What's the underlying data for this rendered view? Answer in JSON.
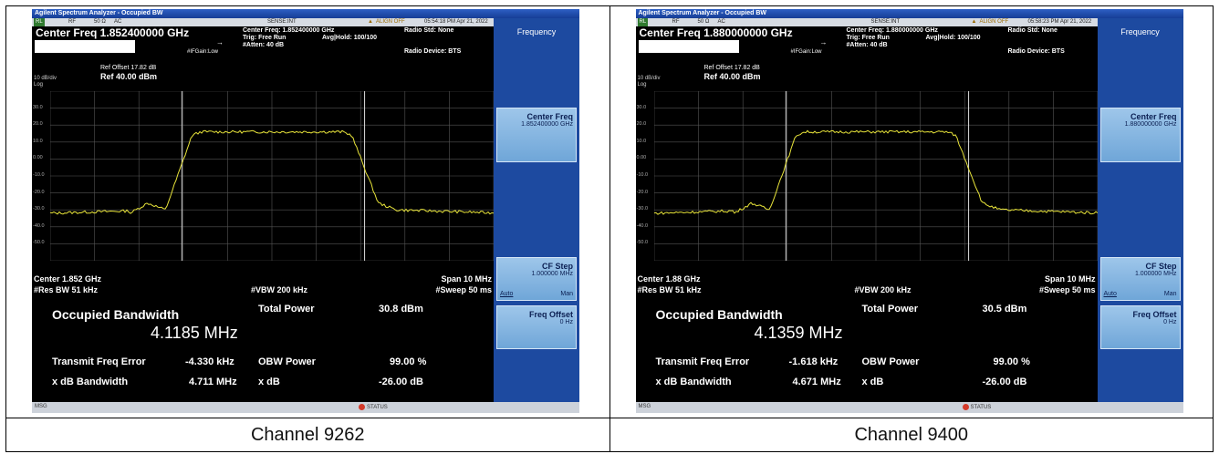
{
  "screens": [
    {
      "app_title": "Agilent Spectrum Analyzer - Occupied BW",
      "status": {
        "rl": "RL",
        "rf": "RF",
        "impedance": "50 Ω",
        "coupling": "AC",
        "sense": "SENSE:INT",
        "align": "ALIGN OFF",
        "timestamp": "05:54:18 PM Apr 21, 2022"
      },
      "center_freq_title": "Center Freq 1.852400000 GHz",
      "center_freq_small": "Center Freq: 1.852400000 GHz",
      "trig": "Trig: Free Run",
      "avg_hold": "Avg|Hold: 100/100",
      "atten": "#Atten: 40 dB",
      "ifgain": "#IFGain:Low",
      "radio_std": "Radio Std: None",
      "radio_device": "Radio Device: BTS",
      "scale": "10 dB/div",
      "log": "Log",
      "ref_offset": "Ref Offset 17.82 dB",
      "ref_level": "Ref 40.00 dBm",
      "y_ticks": [
        "30.0",
        "20.0",
        "10.0",
        "0.00",
        "-10.0",
        "-20.0",
        "-30.0",
        "-40.0",
        "-50.0"
      ],
      "center_label": "Center 1.852 GHz",
      "res_bw": "#Res BW 51 kHz",
      "vbw": "#VBW 200 kHz",
      "span": "Span 10 MHz",
      "sweep": "#Sweep 50 ms",
      "meas": {
        "obw_label": "Occupied Bandwidth",
        "obw_value": "4.1185 MHz",
        "total_power_label": "Total Power",
        "total_power_value": "30.8 dBm",
        "tfe_label": "Transmit Freq Error",
        "tfe_value": "-4.330 kHz",
        "obw_power_label": "OBW Power",
        "obw_power_value": "99.00 %",
        "xdb_bw_label": "x dB Bandwidth",
        "xdb_bw_value": "4.711 MHz",
        "xdb_label": "x dB",
        "xdb_value": "-26.00 dB"
      },
      "softkeys": {
        "menu": "Frequency",
        "center_freq": "Center Freq",
        "center_freq_value": "1.852400000 GHz",
        "cf_step": "CF Step",
        "cf_step_value": "1.000000 MHz",
        "auto": "Auto",
        "man": "Man",
        "freq_offset": "Freq Offset",
        "freq_offset_value": "0 Hz"
      },
      "msg": "MSG",
      "status_label": "STATUS",
      "caption": "Channel 9262"
    },
    {
      "app_title": "Agilent Spectrum Analyzer - Occupied BW",
      "status": {
        "rl": "RL",
        "rf": "RF",
        "impedance": "50 Ω",
        "coupling": "AC",
        "sense": "SENSE:INT",
        "align": "ALIGN OFF",
        "timestamp": "05:58:23 PM Apr 21, 2022"
      },
      "center_freq_title": "Center Freq 1.880000000 GHz",
      "center_freq_small": "Center Freq: 1.880000000 GHz",
      "trig": "Trig: Free Run",
      "avg_hold": "Avg|Hold: 100/100",
      "atten": "#Atten: 40 dB",
      "ifgain": "#IFGain:Low",
      "radio_std": "Radio Std: None",
      "radio_device": "Radio Device: BTS",
      "scale": "10 dB/div",
      "log": "Log",
      "ref_offset": "Ref Offset 17.82 dB",
      "ref_level": "Ref 40.00 dBm",
      "y_ticks": [
        "30.0",
        "20.0",
        "10.0",
        "0.00",
        "-10.0",
        "-20.0",
        "-30.0",
        "-40.0",
        "-50.0"
      ],
      "center_label": "Center 1.88 GHz",
      "res_bw": "#Res BW 51 kHz",
      "vbw": "#VBW 200 kHz",
      "span": "Span 10 MHz",
      "sweep": "#Sweep 50 ms",
      "meas": {
        "obw_label": "Occupied Bandwidth",
        "obw_value": "4.1359 MHz",
        "total_power_label": "Total Power",
        "total_power_value": "30.5 dBm",
        "tfe_label": "Transmit Freq Error",
        "tfe_value": "-1.618 kHz",
        "obw_power_label": "OBW Power",
        "obw_power_value": "99.00 %",
        "xdb_bw_label": "x dB Bandwidth",
        "xdb_bw_value": "4.671 MHz",
        "xdb_label": "x dB",
        "xdb_value": "-26.00 dB"
      },
      "softkeys": {
        "menu": "Frequency",
        "center_freq": "Center Freq",
        "center_freq_value": "1.880000000 GHz",
        "cf_step": "CF Step",
        "cf_step_value": "1.000000 MHz",
        "auto": "Auto",
        "man": "Man",
        "freq_offset": "Freq Offset",
        "freq_offset_value": "0 Hz"
      },
      "msg": "MSG",
      "status_label": "STATUS",
      "caption": "Channel 9400"
    }
  ],
  "colors": {
    "trace": "#e8e43a",
    "background": "#000000",
    "softkey_panel": "#1d4aa0"
  }
}
